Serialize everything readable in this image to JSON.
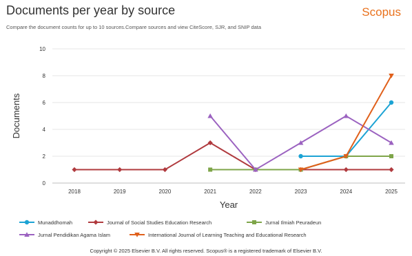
{
  "header": {
    "title": "Documents per year by source",
    "brand": "Scopus",
    "subtitle": "Compare the document counts for up to 10 sources.Compare sources and view CiteScore, SJR, and SNIP data"
  },
  "footer": {
    "copyright": "Copyright © 2025 Elsevier B.V. All rights reserved. Scopus® is a registered trademark of Elsevier B.V."
  },
  "chart_data": {
    "type": "line",
    "xlabel": "Year",
    "ylabel": "Documents",
    "x": [
      "2018",
      "2019",
      "2020",
      "2021",
      "2022",
      "2023",
      "2024",
      "2025"
    ],
    "ylim": [
      0,
      10
    ],
    "yticks": [
      "0",
      "2",
      "4",
      "6",
      "8",
      "10"
    ],
    "grid": "horizontal",
    "legend_position": "bottom",
    "series": [
      {
        "name": "Munaddhomah",
        "color": "#1ca3d4",
        "marker": "circle",
        "values": [
          null,
          null,
          null,
          null,
          null,
          2,
          2,
          6
        ]
      },
      {
        "name": "Journal of Social Studies Education Research",
        "color": "#b03a3e",
        "marker": "diamond",
        "values": [
          1,
          1,
          1,
          3,
          1,
          1,
          1,
          1
        ]
      },
      {
        "name": "Jurnal Ilmiah Peuradeun",
        "color": "#7ea549",
        "marker": "square",
        "values": [
          null,
          null,
          null,
          1,
          1,
          1,
          2,
          2
        ]
      },
      {
        "name": "Jurnal Pendidikan Agama Islam",
        "color": "#9b62c0",
        "marker": "triangle-up",
        "values": [
          null,
          null,
          null,
          5,
          1,
          3,
          5,
          3
        ]
      },
      {
        "name": "International Journal of Learning Teaching and Educational Research",
        "color": "#e0601b",
        "marker": "triangle-down",
        "values": [
          null,
          null,
          null,
          null,
          null,
          1,
          2,
          8
        ]
      }
    ]
  }
}
